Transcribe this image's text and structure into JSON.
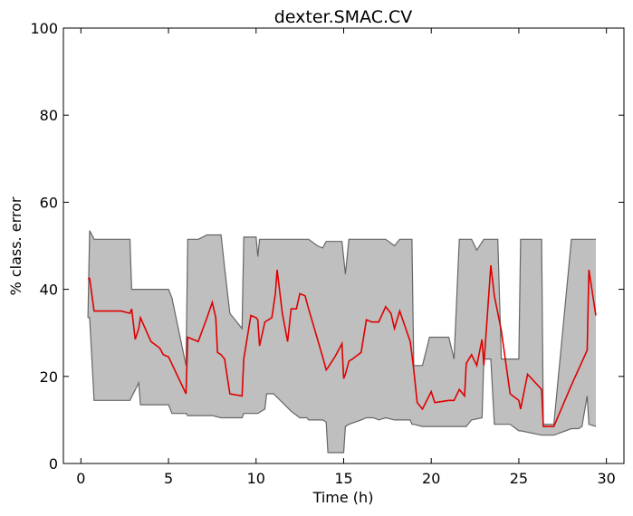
{
  "chart_data": {
    "type": "area",
    "title": "dexter.SMAC.CV",
    "xlabel": "Time (h)",
    "ylabel": "% class. error",
    "xlim": [
      -1,
      31
    ],
    "ylim": [
      0,
      100
    ],
    "xticks": [
      0,
      5,
      10,
      15,
      20,
      25,
      30
    ],
    "yticks": [
      0,
      20,
      40,
      60,
      80,
      100
    ],
    "grid": false,
    "legend": "none",
    "colors": {
      "band_fill": "#bfbfbf",
      "band_edge": "#666666",
      "line": "#e00000",
      "axes": "#000000"
    },
    "series": [
      {
        "role": "upper",
        "x": [
          0.4,
          0.5,
          0.75,
          2.8,
          2.9,
          5.0,
          5.2,
          6.0,
          6.1,
          6.7,
          7.2,
          8.0,
          8.2,
          8.5,
          9.2,
          9.3,
          10.0,
          10.1,
          10.2,
          11.0,
          13.0,
          13.5,
          13.8,
          14.0,
          14.9,
          15.1,
          15.3,
          17.0,
          17.4,
          17.9,
          18.2,
          18.9,
          19.0,
          19.5,
          19.9,
          20.0,
          21.0,
          21.3,
          21.6,
          22.0,
          22.3,
          22.6,
          23.0,
          23.8,
          24.0,
          25.0,
          25.1,
          26.3,
          26.4,
          27.0,
          28.0,
          29.4
        ],
        "y": [
          33.5,
          53.5,
          51.5,
          51.5,
          40.0,
          40.0,
          38.0,
          22.5,
          51.5,
          51.5,
          52.5,
          52.5,
          45.0,
          34.5,
          31.0,
          52.0,
          52.0,
          47.5,
          51.5,
          51.5,
          51.5,
          50.0,
          49.5,
          51.0,
          51.0,
          43.5,
          51.5,
          51.5,
          51.5,
          50.0,
          51.5,
          51.5,
          22.5,
          22.5,
          29.0,
          29.0,
          29.0,
          24.0,
          51.5,
          51.5,
          51.5,
          49.0,
          51.5,
          51.5,
          24.0,
          24.0,
          51.5,
          51.5,
          9.0,
          9.0,
          51.5,
          51.5
        ]
      },
      {
        "role": "lower",
        "x": [
          0.4,
          0.5,
          0.75,
          2.8,
          3.3,
          3.4,
          4.5,
          5.0,
          5.2,
          6.0,
          6.1,
          6.7,
          7.5,
          8.0,
          9.2,
          9.3,
          10.0,
          10.1,
          10.5,
          10.6,
          11.0,
          12.0,
          12.5,
          12.9,
          13.0,
          13.8,
          14.0,
          14.1,
          15.0,
          15.1,
          15.3,
          16.0,
          16.3,
          16.7,
          17.0,
          17.4,
          17.9,
          18.0,
          18.8,
          18.9,
          19.0,
          19.5,
          20.0,
          21.0,
          21.3,
          22.0,
          22.3,
          22.9,
          23.0,
          23.4,
          23.6,
          24.0,
          24.5,
          25.0,
          25.1,
          26.3,
          26.4,
          27.0,
          28.0,
          28.4,
          28.6,
          28.9,
          29.0,
          29.4
        ],
        "y": [
          33.5,
          33.5,
          14.5,
          14.5,
          18.5,
          13.5,
          13.5,
          13.5,
          11.5,
          11.5,
          11.0,
          11.0,
          11.0,
          10.5,
          10.5,
          11.5,
          11.5,
          11.5,
          12.5,
          16.0,
          16.0,
          12.0,
          10.5,
          10.5,
          10.0,
          10.0,
          9.5,
          2.5,
          2.5,
          8.5,
          9.0,
          10.0,
          10.5,
          10.5,
          10.0,
          10.5,
          10.0,
          10.0,
          10.0,
          9.0,
          9.0,
          8.5,
          8.5,
          8.5,
          8.5,
          8.5,
          10.0,
          10.5,
          24.0,
          24.0,
          9.0,
          9.0,
          9.0,
          7.5,
          7.5,
          6.5,
          6.5,
          6.5,
          8.0,
          8.0,
          8.5,
          15.5,
          9.0,
          8.5
        ]
      },
      {
        "role": "mean",
        "x": [
          0.4,
          0.5,
          0.75,
          2.3,
          2.8,
          2.9,
          3.1,
          3.3,
          3.4,
          4.0,
          4.5,
          4.7,
          5.0,
          6.0,
          6.1,
          6.7,
          7.2,
          7.5,
          7.7,
          7.8,
          8.0,
          8.2,
          8.5,
          9.2,
          9.3,
          9.7,
          10.0,
          10.1,
          10.2,
          10.5,
          10.9,
          11.1,
          11.2,
          11.5,
          11.8,
          12.0,
          12.3,
          12.5,
          12.8,
          13.0,
          13.8,
          14.0,
          14.1,
          14.5,
          14.9,
          15.0,
          15.1,
          15.3,
          15.5,
          16.0,
          16.3,
          16.6,
          17.0,
          17.4,
          17.7,
          17.9,
          18.2,
          18.8,
          18.9,
          19.0,
          19.2,
          19.5,
          20.0,
          20.2,
          21.0,
          21.3,
          21.6,
          21.9,
          22.0,
          22.3,
          22.6,
          22.9,
          23.0,
          23.4,
          23.6,
          24.0,
          24.5,
          25.0,
          25.1,
          25.5,
          26.3,
          26.4,
          27.0,
          28.0,
          28.9,
          29.0,
          29.4
        ],
        "y": [
          42.5,
          42.5,
          35.0,
          35.0,
          34.5,
          35.5,
          28.5,
          31.0,
          33.5,
          28.0,
          26.5,
          25.0,
          24.5,
          16.0,
          29.0,
          28.0,
          33.5,
          37.0,
          33.5,
          25.5,
          25.0,
          24.0,
          16.0,
          15.5,
          24.0,
          34.0,
          33.5,
          33.0,
          27.0,
          32.5,
          33.5,
          39.0,
          44.5,
          34.5,
          28.0,
          35.5,
          35.5,
          39.0,
          38.5,
          35.5,
          24.5,
          21.5,
          22.0,
          24.5,
          27.5,
          19.5,
          20.5,
          23.5,
          24.0,
          25.5,
          33.0,
          32.5,
          32.5,
          36.0,
          34.5,
          31.0,
          35.0,
          28.0,
          25.0,
          21.5,
          14.0,
          12.5,
          16.5,
          14.0,
          14.5,
          14.5,
          17.0,
          15.5,
          23.0,
          25.0,
          22.5,
          28.5,
          22.5,
          45.5,
          38.5,
          30.5,
          16.0,
          14.5,
          12.5,
          20.5,
          17.0,
          8.5,
          8.5,
          18.0,
          26.0,
          44.5,
          34.0
        ]
      }
    ]
  }
}
